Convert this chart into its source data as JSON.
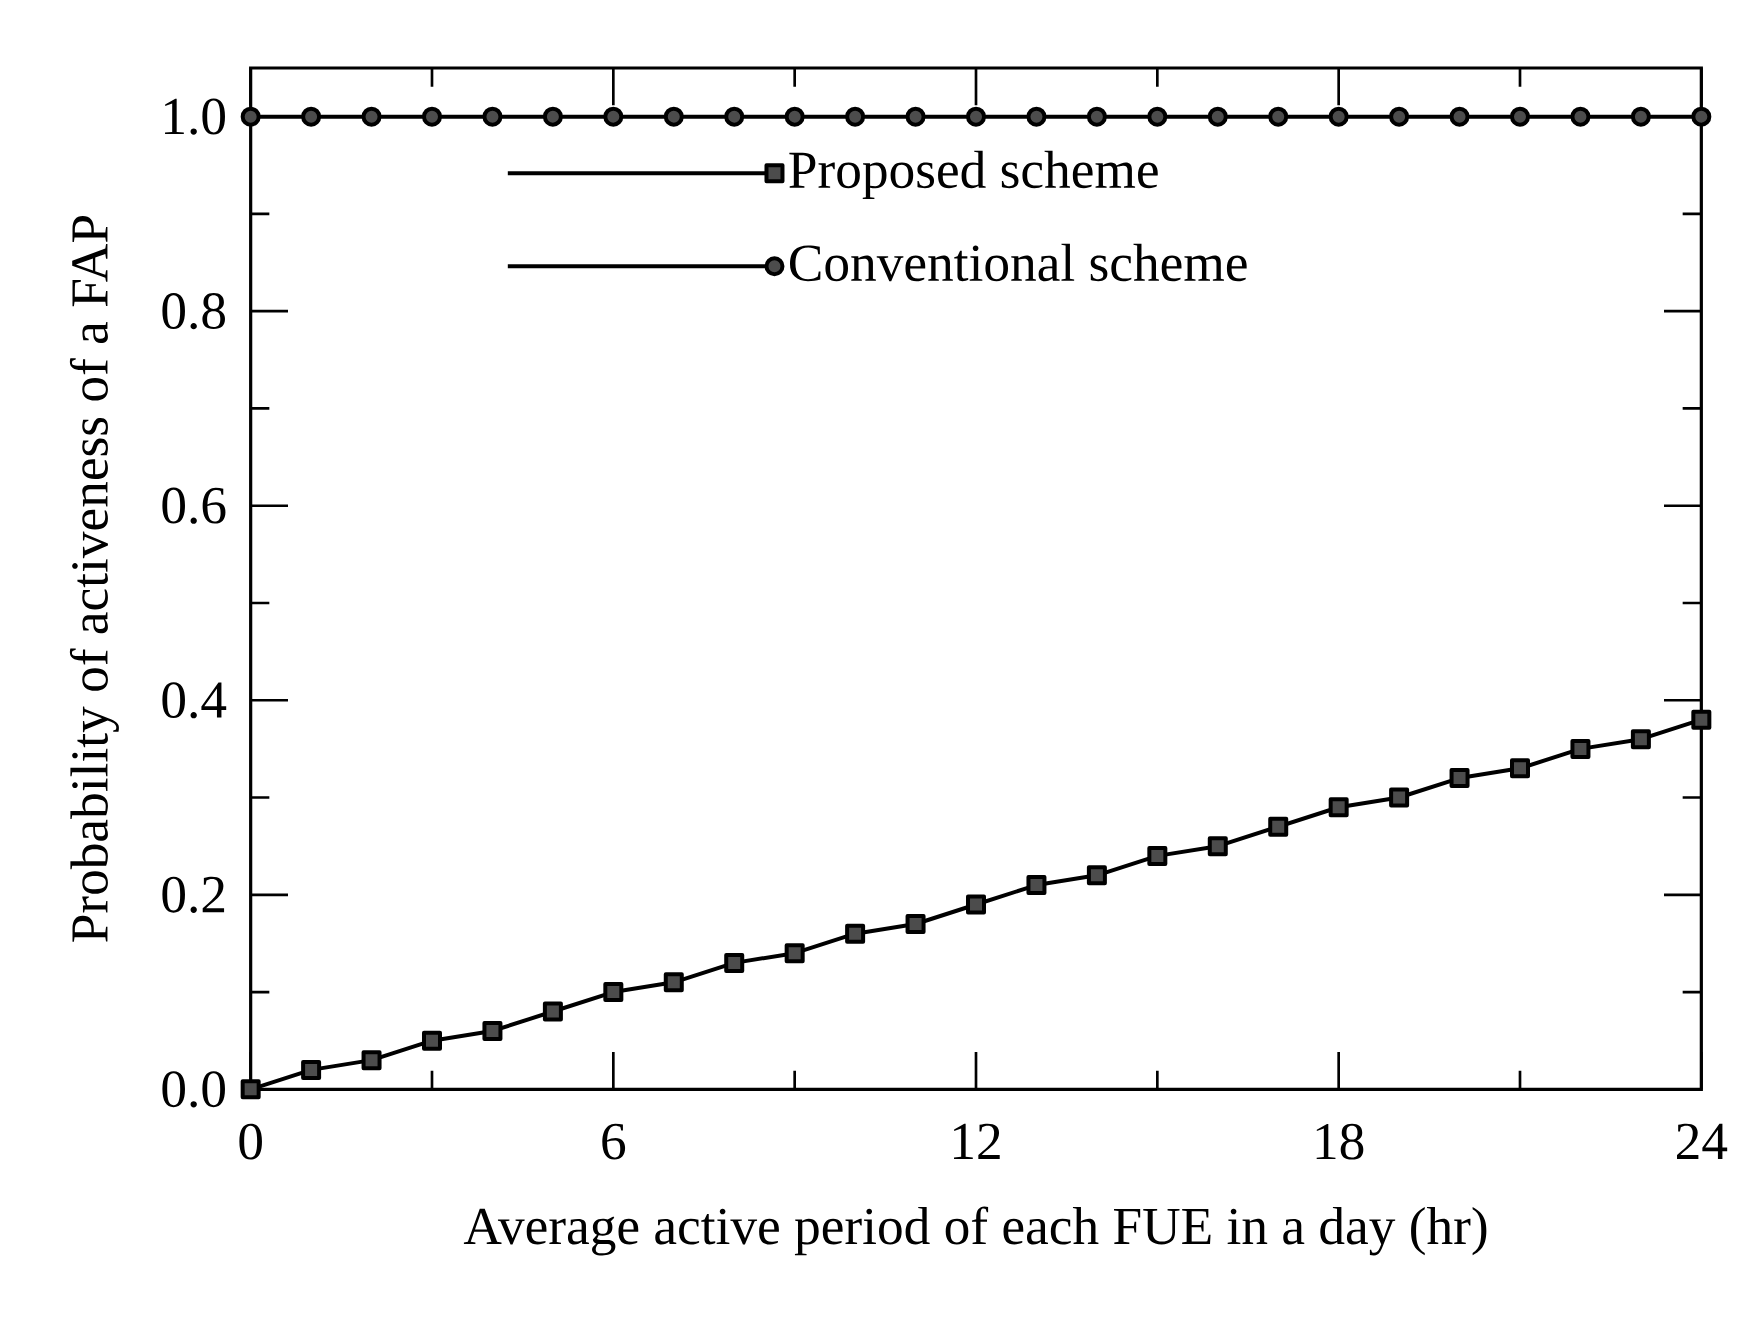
{
  "chart_data": {
    "type": "line",
    "xlabel": "Average active period of each FUE in a day (hr)",
    "ylabel": "Probability of activeness of a FAP",
    "x": [
      0,
      1,
      2,
      3,
      4,
      5,
      6,
      7,
      8,
      9,
      10,
      11,
      12,
      13,
      14,
      15,
      16,
      17,
      18,
      19,
      20,
      21,
      22,
      23,
      24
    ],
    "series": [
      {
        "name": "Proposed scheme",
        "color": "#000000",
        "marker": "square",
        "values": [
          0,
          0.02,
          0.03,
          0.05,
          0.06,
          0.08,
          0.1,
          0.11,
          0.13,
          0.14,
          0.16,
          0.17,
          0.19,
          0.21,
          0.22,
          0.24,
          0.25,
          0.27,
          0.29,
          0.3,
          0.32,
          0.33,
          0.35,
          0.36,
          0.38
        ]
      },
      {
        "name": "Conventional scheme",
        "color": "#000000",
        "marker": "circle",
        "values": [
          1,
          1,
          1,
          1,
          1,
          1,
          1,
          1,
          1,
          1,
          1,
          1,
          1,
          1,
          1,
          1,
          1,
          1,
          1,
          1,
          1,
          1,
          1,
          1,
          1
        ]
      }
    ],
    "xlim": [
      0,
      24
    ],
    "ylim": [
      0,
      1.05
    ],
    "xticks": [
      0,
      6,
      12,
      18,
      24
    ],
    "yticks": [
      {
        "value": 0,
        "label": "0.0"
      },
      {
        "value": 0.2,
        "label": "0.2"
      },
      {
        "value": 0.4,
        "label": "0.4"
      },
      {
        "value": 0.6,
        "label": "0.6"
      },
      {
        "value": 0.8,
        "label": "0.8"
      },
      {
        "value": 1,
        "label": "1.0"
      }
    ],
    "legend": "top",
    "grid": false,
    "line_style": "solid"
  }
}
